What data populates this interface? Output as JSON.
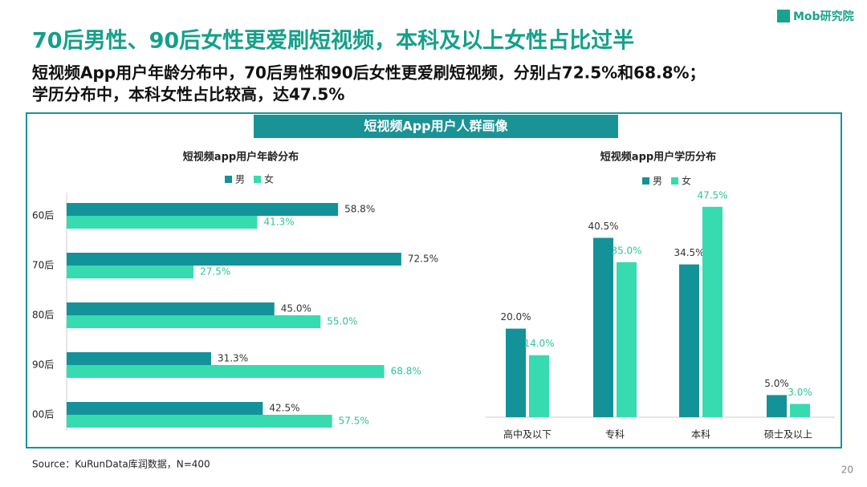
{
  "header": {
    "logo": "Mob研究院",
    "title": "70后男性、90后女性更爱刷短视频，本科及以上女性占比过半",
    "subtitle": [
      "短视频App用户年龄分布中，70后男性和90后女性更爱刷短视频，分别占72.5%和68.8%；",
      "学历分布中，本科女性占比较高，达47.5%"
    ]
  },
  "panel_title": "短视频App用户人群画像",
  "chart_data": [
    {
      "type": "bar",
      "orientation": "horizontal",
      "title": "短视频app用户年龄分布",
      "categories": [
        "60后",
        "70后",
        "80后",
        "90后",
        "00后"
      ],
      "series": [
        {
          "name": "男",
          "color": "#14929a",
          "values": [
            58.8,
            72.5,
            45.0,
            31.3,
            42.5
          ],
          "value_labels": [
            "58.8%",
            "72.5%",
            "45.0%",
            "31.3%",
            "42.5%"
          ]
        },
        {
          "name": "女",
          "color": "#36dbb0",
          "values": [
            41.3,
            27.5,
            55.0,
            68.8,
            57.5
          ],
          "value_labels": [
            "41.3%",
            "27.5%",
            "55.0%",
            "68.8%",
            "57.5%"
          ]
        }
      ]
    },
    {
      "type": "bar",
      "orientation": "vertical",
      "title": "短视频app用户学历分布",
      "categories": [
        "高中及以下",
        "专科",
        "本科",
        "硕士及以上"
      ],
      "series": [
        {
          "name": "男",
          "color": "#14929a",
          "values": [
            20.0,
            40.5,
            34.5,
            5.0
          ],
          "value_labels": [
            "20.0%",
            "40.5%",
            "34.5%",
            "5.0%"
          ]
        },
        {
          "name": "女",
          "color": "#36dbb0",
          "values": [
            14.0,
            35.0,
            47.5,
            3.0
          ],
          "value_labels": [
            "14.0%",
            "35.0%",
            "47.5%",
            "3.0%"
          ]
        }
      ]
    }
  ],
  "footer": {
    "source": "Source：KuRunData库润数据，N=400",
    "page": 20
  }
}
